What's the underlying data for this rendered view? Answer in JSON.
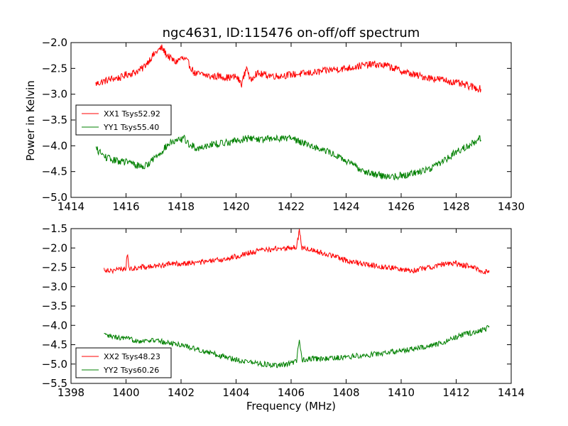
{
  "figure": {
    "title": "ngc4631, ID:115476 on-off/off spectrum",
    "ylabel": "Power in Kelvin",
    "xlabel": "Frequency (MHz)"
  },
  "colors": {
    "red": "#ff0000",
    "green": "#008000"
  },
  "chart_data": [
    {
      "type": "line",
      "title": "ngc4631, ID:115476 on-off/off spectrum",
      "xlabel": "",
      "ylabel": "Power in Kelvin",
      "xlim": [
        1414,
        1430
      ],
      "ylim": [
        -5.0,
        -2.0
      ],
      "xticks": [
        "1414",
        "1416",
        "1418",
        "1420",
        "1422",
        "1424",
        "1426",
        "1428",
        "1430"
      ],
      "yticks": [
        "−2.0",
        "−2.5",
        "−3.0",
        "−3.5",
        "−4.0",
        "−4.5",
        "−5.0"
      ],
      "grid": false,
      "legend_position": "center-left",
      "series": [
        {
          "name": "XX1 Tsys52.92",
          "color": "#ff0000",
          "x": [
            1414.9,
            1415.2,
            1415.5,
            1415.8,
            1416.0,
            1416.3,
            1416.6,
            1416.9,
            1417.1,
            1417.3,
            1417.5,
            1417.8,
            1418.0,
            1418.2,
            1418.5,
            1418.8,
            1419.1,
            1419.4,
            1419.7,
            1420.0,
            1420.2,
            1420.4,
            1420.5,
            1420.7,
            1421.0,
            1421.5,
            1422.0,
            1422.5,
            1423.0,
            1423.5,
            1424.0,
            1424.5,
            1425.0,
            1425.5,
            1426.0,
            1426.5,
            1427.0,
            1427.5,
            1428.0,
            1428.5,
            1428.9
          ],
          "y": [
            -2.8,
            -2.75,
            -2.7,
            -2.68,
            -2.62,
            -2.58,
            -2.5,
            -2.3,
            -2.18,
            -2.1,
            -2.25,
            -2.38,
            -2.3,
            -2.35,
            -2.6,
            -2.62,
            -2.66,
            -2.65,
            -2.68,
            -2.66,
            -2.8,
            -2.45,
            -2.75,
            -2.6,
            -2.62,
            -2.65,
            -2.62,
            -2.6,
            -2.57,
            -2.52,
            -2.5,
            -2.45,
            -2.42,
            -2.45,
            -2.55,
            -2.63,
            -2.68,
            -2.72,
            -2.78,
            -2.85,
            -2.9
          ]
        },
        {
          "name": "YY1 Tsys55.40",
          "color": "#008000",
          "x": [
            1414.9,
            1415.2,
            1415.5,
            1415.8,
            1416.1,
            1416.4,
            1416.7,
            1417.0,
            1417.3,
            1417.6,
            1417.9,
            1418.1,
            1418.3,
            1418.6,
            1419.0,
            1419.5,
            1420.0,
            1420.5,
            1421.0,
            1421.5,
            1422.0,
            1422.5,
            1423.0,
            1423.5,
            1424.0,
            1424.5,
            1425.0,
            1425.5,
            1426.0,
            1426.5,
            1427.0,
            1427.5,
            1428.0,
            1428.5,
            1428.9
          ],
          "y": [
            -4.05,
            -4.2,
            -4.28,
            -4.3,
            -4.32,
            -4.38,
            -4.4,
            -4.25,
            -4.1,
            -3.95,
            -3.9,
            -3.85,
            -3.98,
            -4.05,
            -3.98,
            -3.95,
            -3.9,
            -3.85,
            -3.88,
            -3.85,
            -3.85,
            -3.95,
            -4.05,
            -4.15,
            -4.3,
            -4.45,
            -4.55,
            -4.6,
            -4.58,
            -4.52,
            -4.45,
            -4.3,
            -4.12,
            -3.98,
            -3.85
          ]
        }
      ]
    },
    {
      "type": "line",
      "title": "",
      "xlabel": "Frequency (MHz)",
      "ylabel": "",
      "xlim": [
        1398,
        1414
      ],
      "ylim": [
        -5.5,
        -1.5
      ],
      "xticks": [
        "1398",
        "1400",
        "1402",
        "1404",
        "1406",
        "1408",
        "1410",
        "1412",
        "1414"
      ],
      "yticks": [
        "−1.5",
        "−2.0",
        "−2.5",
        "−3.0",
        "−3.5",
        "−4.0",
        "−4.5",
        "−5.0",
        "−5.5"
      ],
      "grid": false,
      "legend_position": "lower-left",
      "series": [
        {
          "name": "XX2 Tsys48.23",
          "color": "#ff0000",
          "x": [
            1399.2,
            1399.5,
            1399.8,
            1400.0,
            1400.05,
            1400.1,
            1400.5,
            1401.0,
            1401.5,
            1402.0,
            1402.5,
            1403.0,
            1403.5,
            1404.0,
            1404.5,
            1405.0,
            1405.5,
            1406.0,
            1406.2,
            1406.3,
            1406.4,
            1406.6,
            1407.0,
            1407.5,
            1408.0,
            1408.5,
            1409.0,
            1409.5,
            1410.0,
            1410.5,
            1411.0,
            1411.5,
            1412.0,
            1412.5,
            1413.0,
            1413.2
          ],
          "y": [
            -2.55,
            -2.58,
            -2.55,
            -2.52,
            -2.05,
            -2.55,
            -2.5,
            -2.48,
            -2.42,
            -2.4,
            -2.38,
            -2.35,
            -2.3,
            -2.22,
            -2.12,
            -2.05,
            -2.02,
            -2.0,
            -1.98,
            -1.55,
            -2.0,
            -2.02,
            -2.1,
            -2.2,
            -2.32,
            -2.4,
            -2.45,
            -2.5,
            -2.55,
            -2.58,
            -2.5,
            -2.42,
            -2.4,
            -2.48,
            -2.6,
            -2.65
          ]
        },
        {
          "name": "YY2 Tsys60.26",
          "color": "#008000",
          "x": [
            1399.2,
            1399.5,
            1400.0,
            1400.5,
            1401.0,
            1401.5,
            1402.0,
            1402.5,
            1403.0,
            1403.5,
            1404.0,
            1404.5,
            1405.0,
            1405.5,
            1406.0,
            1406.2,
            1406.3,
            1406.4,
            1406.8,
            1407.0,
            1407.5,
            1408.0,
            1408.5,
            1409.0,
            1409.5,
            1410.0,
            1410.5,
            1411.0,
            1411.5,
            1412.0,
            1412.5,
            1413.0,
            1413.2
          ],
          "y": [
            -4.25,
            -4.3,
            -4.35,
            -4.4,
            -4.38,
            -4.45,
            -4.5,
            -4.6,
            -4.7,
            -4.8,
            -4.88,
            -4.95,
            -5.0,
            -5.05,
            -4.98,
            -4.92,
            -4.35,
            -4.9,
            -4.85,
            -4.88,
            -4.85,
            -4.82,
            -4.78,
            -4.75,
            -4.7,
            -4.65,
            -4.6,
            -4.55,
            -4.45,
            -4.3,
            -4.2,
            -4.12,
            -4.05
          ]
        }
      ]
    }
  ]
}
